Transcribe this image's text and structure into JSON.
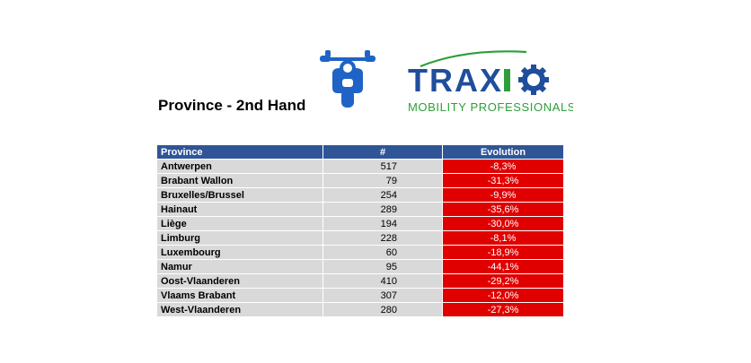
{
  "title": "Province - 2nd Hand",
  "logo": {
    "brand_text": "TRAXIO",
    "tagline": "MOBILITY PROFESSIONALS",
    "brand_color": "#1f4e9c",
    "accent_color": "#2e9e3a"
  },
  "motorcycle_icon": {
    "name": "motorcycle-icon",
    "color": "#1f63c6"
  },
  "colors": {
    "header_bg": "#2f5597",
    "row_bg": "#d9d9d9",
    "negative_bg": "#e00000"
  },
  "table": {
    "headers": {
      "province": "Province",
      "count": "#",
      "evolution": "Evolution"
    },
    "rows": [
      {
        "province": "Antwerpen",
        "count": "517",
        "evolution": "-8,3%"
      },
      {
        "province": "Brabant Wallon",
        "count": "79",
        "evolution": "-31,3%"
      },
      {
        "province": "Bruxelles/Brussel",
        "count": "254",
        "evolution": "-9,9%"
      },
      {
        "province": "Hainaut",
        "count": "289",
        "evolution": "-35,6%"
      },
      {
        "province": "Liège",
        "count": "194",
        "evolution": "-30,0%"
      },
      {
        "province": "Limburg",
        "count": "228",
        "evolution": "-8,1%"
      },
      {
        "province": "Luxembourg",
        "count": "60",
        "evolution": "-18,9%"
      },
      {
        "province": "Namur",
        "count": "95",
        "evolution": "-44,1%"
      },
      {
        "province": "Oost-Vlaanderen",
        "count": "410",
        "evolution": "-29,2%"
      },
      {
        "province": "Vlaams Brabant",
        "count": "307",
        "evolution": "-12,0%"
      },
      {
        "province": "West-Vlaanderen",
        "count": "280",
        "evolution": "-27,3%"
      }
    ]
  }
}
